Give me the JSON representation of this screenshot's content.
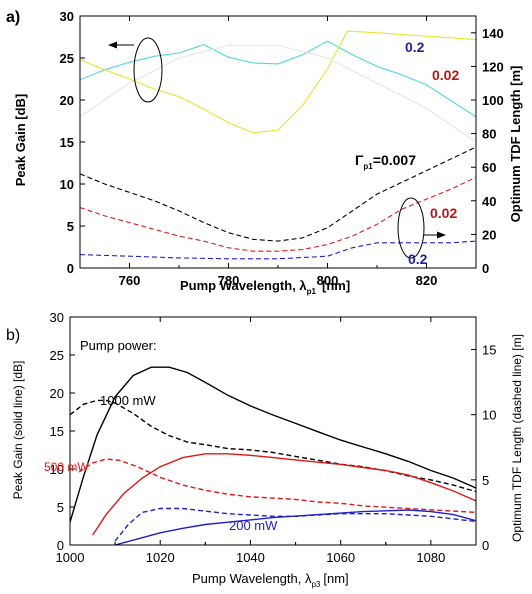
{
  "chart_data": [
    {
      "type": "line",
      "panel_label": "a)",
      "xlabel_main": "Pump Wavelength, λ",
      "xlabel_sub": "p1",
      "xlabel_unit": "[nm]",
      "ylabel_left": "Peak Gain [dB]",
      "ylabel_right": "Optimum TDF Length [m]",
      "xlim": [
        750,
        830
      ],
      "ylim_left": [
        0,
        30
      ],
      "ylim_right": [
        0,
        150
      ],
      "xticks": [
        "760",
        "780",
        "800",
        "820"
      ],
      "yticks_left": [
        "0",
        "5",
        "10",
        "15",
        "20",
        "25",
        "30"
      ],
      "yticks_right": [
        "0",
        "20",
        "40",
        "60",
        "80",
        "100",
        "120",
        "140"
      ],
      "annotations": [
        {
          "id": "a-lbl-02-top",
          "text": "0.2",
          "color": "#1f1fa8"
        },
        {
          "id": "a-lbl-002-top",
          "text": "0.02",
          "color": "#b01818"
        },
        {
          "id": "a-lbl-gamma",
          "text_main": "Γ",
          "text_sub": "p1",
          "text_tail": "=0.007",
          "color": "#000000"
        },
        {
          "id": "a-lbl-002-bot",
          "text": "0.02",
          "color": "#b01818"
        },
        {
          "id": "a-lbl-02-bot",
          "text": "0.2",
          "color": "#1f1fa8"
        }
      ],
      "series": [
        {
          "axis": "left",
          "style": "solid",
          "color": "#4fd6e0",
          "x": [
            750,
            755,
            760,
            765,
            770,
            775,
            780,
            785,
            790,
            795,
            800,
            805,
            810,
            815,
            820,
            825,
            830
          ],
          "y": [
            22.4,
            23.6,
            24.5,
            25.2,
            25.6,
            26.6,
            25.1,
            24.4,
            24.3,
            25.4,
            27.0,
            25.4,
            24.0,
            23.0,
            21.8,
            19.9,
            18.0
          ]
        },
        {
          "axis": "left",
          "style": "solid",
          "color": "#e8e430",
          "x": [
            750,
            755,
            760,
            765,
            770,
            775,
            780,
            785,
            790,
            795,
            800,
            804,
            810,
            815,
            820,
            825,
            830
          ],
          "y": [
            24.8,
            23.6,
            22.5,
            21.3,
            20.4,
            18.9,
            17.3,
            16.1,
            16.4,
            19.4,
            23.7,
            28.2,
            28.0,
            27.8,
            27.6,
            27.4,
            27.2
          ]
        },
        {
          "axis": "left",
          "style": "solid",
          "color": "#e6e6e6",
          "x": [
            750,
            760,
            770,
            780,
            790,
            800,
            810,
            820,
            830
          ],
          "y": [
            18,
            22,
            25,
            26.5,
            26.5,
            25,
            22,
            19,
            15
          ]
        },
        {
          "axis": "right",
          "style": "dashed",
          "color": "#000000",
          "x": [
            750,
            755,
            760,
            765,
            770,
            775,
            780,
            785,
            790,
            795,
            800,
            805,
            810,
            815,
            820,
            825,
            830
          ],
          "y": [
            56,
            50,
            45,
            40,
            34,
            27,
            21,
            17,
            16,
            18,
            24,
            34,
            44,
            51,
            58,
            65,
            72
          ]
        },
        {
          "axis": "right",
          "style": "dashed",
          "color": "#d42020",
          "x": [
            750,
            755,
            760,
            765,
            770,
            775,
            780,
            785,
            790,
            795,
            800,
            805,
            810,
            815,
            820,
            825,
            830
          ],
          "y": [
            36,
            31,
            27,
            23,
            19,
            16,
            12,
            10,
            10,
            11,
            14,
            19,
            26,
            35,
            41,
            47,
            54
          ]
        },
        {
          "axis": "right",
          "style": "dashed",
          "color": "#2020c8",
          "x": [
            750,
            760,
            770,
            780,
            790,
            800,
            805,
            810,
            815,
            820,
            825,
            830
          ],
          "y": [
            8,
            7,
            6,
            5.5,
            5.5,
            7,
            12,
            15,
            15,
            15,
            15,
            16
          ]
        }
      ]
    },
    {
      "type": "line",
      "panel_label": "b)",
      "xlabel_main": "Pump Wavelength, λ",
      "xlabel_sub": "p3",
      "xlabel_unit": "[nm]",
      "ylabel_left": "Peak Gain (solid line) [dB]",
      "ylabel_right": "Optimum TDF Length (dashed line) [m]",
      "xlim": [
        1000,
        1090
      ],
      "ylim_left": [
        0,
        30
      ],
      "ylim_right": [
        0,
        17.5
      ],
      "xticks": [
        "1000",
        "1020",
        "1040",
        "1060",
        "1080"
      ],
      "yticks_left": [
        "0",
        "5",
        "10",
        "15",
        "20",
        "25",
        "30"
      ],
      "yticks_right": [
        "0",
        "5",
        "10",
        "15"
      ],
      "annotations": [
        {
          "id": "b-lbl-pump",
          "text": "Pump power:",
          "color": "#000000"
        },
        {
          "id": "b-lbl-1000",
          "text": "1000 mW",
          "color": "#000000"
        },
        {
          "id": "b-lbl-500",
          "text": "500 mW",
          "color": "#e01818"
        },
        {
          "id": "b-lbl-200",
          "text": "200 mW",
          "color": "#2020c8"
        }
      ],
      "series": [
        {
          "name": "1000 mW",
          "axis": "left",
          "style": "solid",
          "color": "#000000",
          "x": [
            1000,
            1003,
            1006,
            1010,
            1014,
            1018,
            1022,
            1026,
            1030,
            1035,
            1040,
            1045,
            1050,
            1055,
            1060,
            1065,
            1070,
            1075,
            1080,
            1085,
            1090
          ],
          "y": [
            3,
            9,
            14.5,
            19.5,
            22.3,
            23.4,
            23.4,
            22.7,
            21.4,
            19.7,
            18.3,
            17.1,
            16.0,
            14.9,
            13.8,
            12.9,
            12.0,
            11.0,
            9.8,
            8.8,
            7.5
          ]
        },
        {
          "name": "1000 mW",
          "axis": "right",
          "style": "dashed",
          "color": "#000000",
          "x": [
            1000,
            1003,
            1006,
            1008,
            1010,
            1014,
            1018,
            1022,
            1026,
            1030,
            1035,
            1040,
            1045,
            1050,
            1055,
            1060,
            1065,
            1070,
            1075,
            1080,
            1085,
            1090
          ],
          "y": [
            10.0,
            10.8,
            11.1,
            11.1,
            10.9,
            10.1,
            9.1,
            8.4,
            7.9,
            7.7,
            7.4,
            7.3,
            7.1,
            6.8,
            6.5,
            6.2,
            6.0,
            5.7,
            5.3,
            5.0,
            4.6,
            4.1
          ]
        },
        {
          "name": "500 mW",
          "axis": "left",
          "style": "solid",
          "color": "#e01818",
          "x": [
            1005,
            1008,
            1012,
            1016,
            1020,
            1025,
            1030,
            1035,
            1040,
            1045,
            1050,
            1055,
            1060,
            1065,
            1070,
            1075,
            1080,
            1085,
            1090
          ],
          "y": [
            1.3,
            4,
            6.8,
            8.8,
            10.3,
            11.5,
            12.0,
            12.0,
            11.8,
            11.5,
            11.2,
            10.9,
            10.6,
            10.2,
            9.8,
            9.2,
            8.2,
            7.1,
            5.8
          ]
        },
        {
          "name": "500 mW",
          "axis": "right",
          "style": "dashed",
          "color": "#e01818",
          "x": [
            1002,
            1005,
            1008,
            1011,
            1015,
            1020,
            1025,
            1030,
            1035,
            1040,
            1045,
            1050,
            1055,
            1060,
            1065,
            1070,
            1075,
            1080,
            1085,
            1090
          ],
          "y": [
            5.6,
            6.3,
            6.6,
            6.5,
            6.0,
            5.2,
            4.6,
            4.2,
            3.9,
            3.7,
            3.6,
            3.5,
            3.3,
            3.2,
            3.0,
            2.9,
            2.8,
            2.7,
            2.6,
            2.5
          ]
        },
        {
          "name": "200 mW",
          "axis": "left",
          "style": "solid",
          "color": "#2020c8",
          "x": [
            1010,
            1015,
            1020,
            1025,
            1030,
            1035,
            1040,
            1045,
            1050,
            1055,
            1060,
            1065,
            1070,
            1075,
            1080,
            1085,
            1090
          ],
          "y": [
            0,
            0.8,
            1.6,
            2.2,
            2.7,
            3.0,
            3.3,
            3.6,
            3.8,
            4.0,
            4.2,
            4.4,
            4.5,
            4.6,
            4.4,
            4.0,
            3.2
          ]
        },
        {
          "name": "200 mW",
          "axis": "right",
          "style": "dashed",
          "color": "#2020c8",
          "x": [
            1010,
            1013,
            1016,
            1020,
            1025,
            1030,
            1035,
            1040,
            1045,
            1050,
            1055,
            1060,
            1065,
            1070,
            1075,
            1080,
            1085,
            1090
          ],
          "y": [
            0.3,
            1.6,
            2.5,
            2.8,
            2.8,
            2.6,
            2.4,
            2.3,
            2.2,
            2.2,
            2.3,
            2.4,
            2.4,
            2.4,
            2.3,
            2.2,
            2.0,
            1.8
          ]
        }
      ]
    }
  ]
}
